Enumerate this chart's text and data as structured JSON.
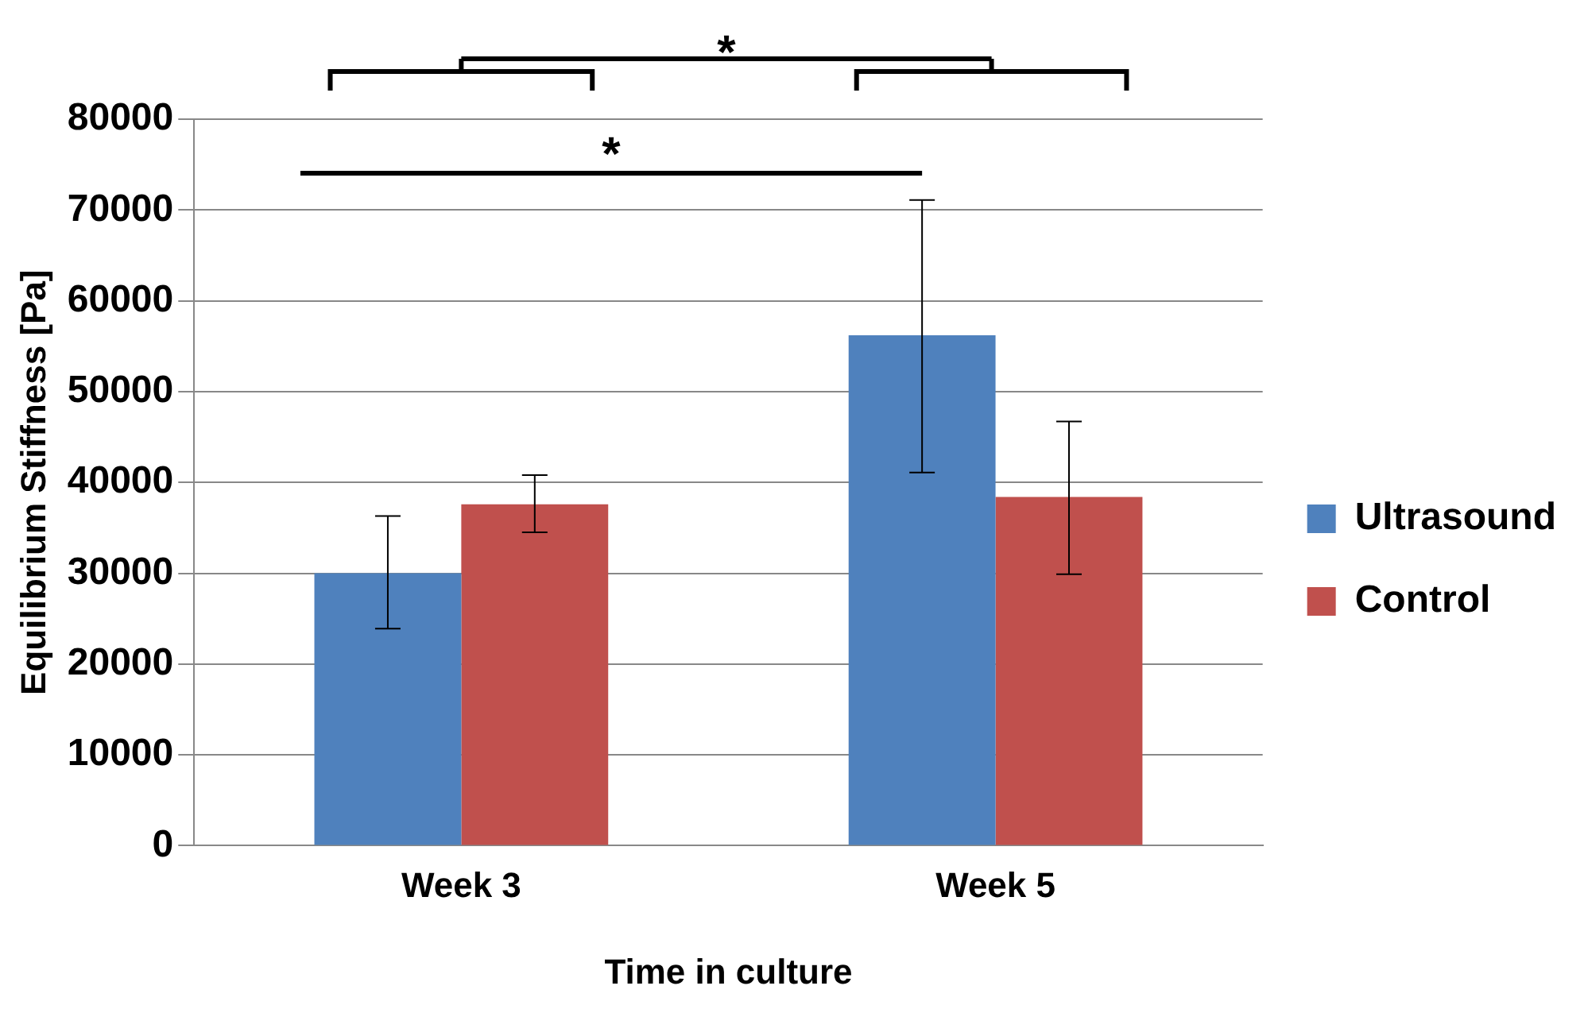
{
  "chart_data": {
    "type": "bar",
    "xlabel": "Time in culture",
    "ylabel": "Equilibrium Stiffness [Pa]",
    "categories": [
      "Week 3",
      "Week 5"
    ],
    "series": [
      {
        "name": "Ultrasound",
        "color": "#4f81bd",
        "values": [
          30000,
          56200
        ],
        "errors": [
          [
            23900,
            36300
          ],
          [
            41100,
            71100
          ]
        ]
      },
      {
        "name": "Control",
        "color": "#c0504d",
        "values": [
          37600,
          38400
        ],
        "errors": [
          [
            34500,
            40800
          ],
          [
            29900,
            46700
          ]
        ]
      }
    ],
    "ylim": [
      0,
      80000
    ],
    "yticks": [
      0,
      10000,
      20000,
      30000,
      40000,
      50000,
      60000,
      70000,
      80000
    ],
    "grid": "y",
    "legend": "right",
    "annotations": [
      "*",
      "*"
    ]
  }
}
